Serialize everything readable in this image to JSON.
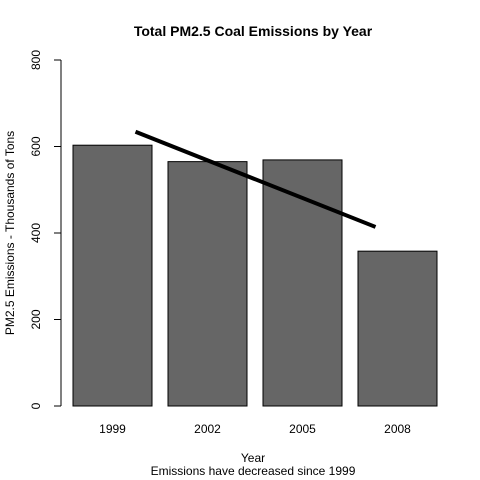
{
  "chart_data": {
    "type": "bar",
    "title": "Total PM2.5 Coal Emissions by Year",
    "xlabel": "Year",
    "ylabel": "PM2.5 Emissions - Thousands of Tons",
    "subtitle": "Emissions have decreased since 1999",
    "categories": [
      "1999",
      "2002",
      "2005",
      "2008"
    ],
    "values": [
      603,
      565,
      569,
      358
    ],
    "y_ticks": [
      0,
      200,
      400,
      600,
      800
    ],
    "ylim": [
      0,
      800
    ],
    "grid": false,
    "bar_color": "#666666",
    "trend_line": {
      "description": "linear regression line",
      "start": {
        "x": "1999",
        "y": 634
      },
      "end": {
        "x": "2008",
        "y": 414
      }
    }
  }
}
